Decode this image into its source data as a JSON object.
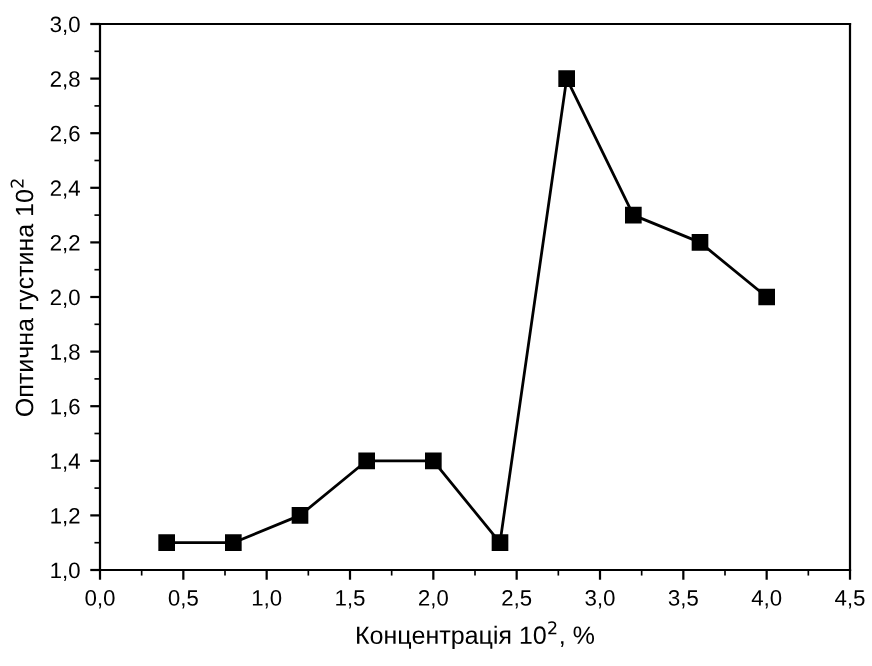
{
  "chart_data": {
    "type": "line",
    "xlabel": "Концентрація 10$^{2}$, %",
    "ylabel": "Оптична густина 10$^{2}$",
    "x": [
      0.4,
      0.8,
      1.2,
      1.6,
      2.0,
      2.4,
      2.8,
      3.2,
      3.6,
      4.0
    ],
    "series": [
      {
        "color": "#000000",
        "values": [
          1.1,
          1.1,
          1.2,
          1.4,
          1.4,
          1.1,
          2.8,
          2.3,
          2.2,
          2.0
        ]
      }
    ],
    "marker": "square",
    "line_style": "solid",
    "grid": false,
    "legend": false,
    "xlim": [
      0.0,
      4.5
    ],
    "xticks": [
      {
        "value": 0.0,
        "label": "0,0"
      },
      {
        "value": 0.5,
        "label": "0,5"
      },
      {
        "value": 1.0,
        "label": "1,0"
      },
      {
        "value": 1.5,
        "label": "1,5"
      },
      {
        "value": 2.0,
        "label": "2,0"
      },
      {
        "value": 2.5,
        "label": "2,5"
      },
      {
        "value": 3.0,
        "label": "3,0"
      },
      {
        "value": 3.5,
        "label": "3,5"
      },
      {
        "value": 4.0,
        "label": "4,0"
      },
      {
        "value": 4.5,
        "label": "4,5"
      }
    ],
    "ylim": [
      1.0,
      3.0
    ],
    "yticks": [
      {
        "value": 1.0,
        "label": "1,0"
      },
      {
        "value": 1.2,
        "label": "1,2"
      },
      {
        "value": 1.4,
        "label": "1,4"
      },
      {
        "value": 1.6,
        "label": "1,6"
      },
      {
        "value": 1.8,
        "label": "1,8"
      },
      {
        "value": 2.0,
        "label": "2,0"
      },
      {
        "value": 2.2,
        "label": "2,2"
      },
      {
        "value": 2.4,
        "label": "2,4"
      },
      {
        "value": 2.6,
        "label": "2,6"
      },
      {
        "value": 2.8,
        "label": "2,8"
      },
      {
        "value": 3.0,
        "label": "3,0"
      }
    ]
  }
}
